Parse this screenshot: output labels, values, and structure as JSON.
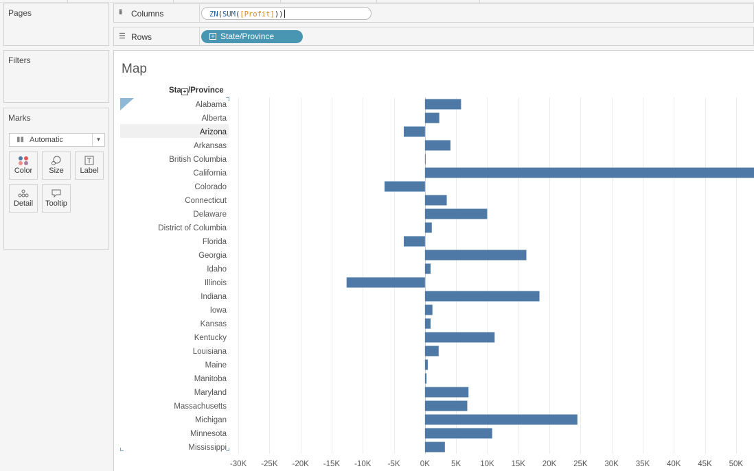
{
  "shelves": {
    "pages_label": "Pages",
    "filters_label": "Filters",
    "marks_label": "Marks",
    "columns_label": "Columns",
    "rows_label": "Rows",
    "columns_pill": {
      "fn1": "ZN",
      "p1": "(",
      "fn2": "SUM",
      "p2": "(",
      "field": "[Profit]",
      "p3": "))"
    },
    "rows_pill": "State/Province"
  },
  "marks": {
    "type": "Automatic",
    "buttons": {
      "color": "Color",
      "size": "Size",
      "label": "Label",
      "detail": "Detail",
      "tooltip": "Tooltip"
    }
  },
  "view": {
    "title": "Map",
    "row_header_start": "Sta",
    "row_header_end": "/Province",
    "highlighted_row": "Arizona"
  },
  "colors": {
    "bar": "#4e79a7",
    "pill": "#4996b2",
    "grid": "#ececec"
  },
  "chart_data": {
    "type": "bar",
    "orientation": "horizontal",
    "categories": [
      "Alabama",
      "Alberta",
      "Arizona",
      "Arkansas",
      "British Columbia",
      "California",
      "Colorado",
      "Connecticut",
      "Delaware",
      "District of Columbia",
      "Florida",
      "Georgia",
      "Idaho",
      "Illinois",
      "Indiana",
      "Iowa",
      "Kansas",
      "Kentucky",
      "Louisiana",
      "Maine",
      "Manitoba",
      "Maryland",
      "Massachusetts",
      "Michigan",
      "Minnesota",
      "Mississippi"
    ],
    "values": [
      5800,
      2300,
      -3400,
      4100,
      100,
      53000,
      -6500,
      3500,
      10000,
      1100,
      -3400,
      16300,
      900,
      -12600,
      18400,
      1200,
      900,
      11200,
      2200,
      450,
      250,
      7000,
      6800,
      24500,
      10800,
      3200
    ],
    "xticks": [
      -30000,
      -25000,
      -20000,
      -15000,
      -10000,
      -5000,
      0,
      5000,
      10000,
      15000,
      20000,
      25000,
      30000,
      35000,
      40000,
      45000,
      50000
    ],
    "xtick_labels": [
      "-30K",
      "-25K",
      "-20K",
      "-15K",
      "-10K",
      "-5K",
      "0K",
      "5K",
      "10K",
      "15K",
      "20K",
      "25K",
      "30K",
      "35K",
      "40K",
      "45K",
      "50K"
    ],
    "xlim": [
      -31000,
      53000
    ],
    "grid": true
  }
}
